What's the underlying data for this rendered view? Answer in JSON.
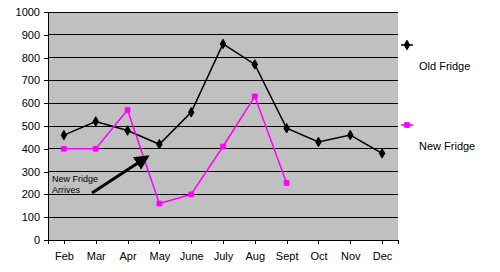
{
  "chart_data": {
    "type": "line",
    "categories": [
      "Feb",
      "Mar",
      "Apr",
      "May",
      "June",
      "July",
      "Aug",
      "Sept",
      "Oct",
      "Nov",
      "Dec"
    ],
    "series": [
      {
        "name": "Old Fridge",
        "color": "#000000",
        "marker": "diamond",
        "values": [
          460,
          520,
          480,
          420,
          560,
          860,
          770,
          490,
          430,
          460,
          380
        ]
      },
      {
        "name": "New Fridge",
        "color": "#ff00ff",
        "marker": "square",
        "values": [
          400,
          400,
          570,
          160,
          200,
          410,
          630,
          250,
          null,
          null,
          null
        ]
      }
    ],
    "annotations": [
      {
        "text": "New Fridge Arrives"
      }
    ],
    "ylim": [
      0,
      1000
    ],
    "yticks": [
      0,
      100,
      200,
      300,
      400,
      500,
      600,
      700,
      800,
      900,
      1000
    ],
    "grid": true,
    "legend": "right"
  }
}
